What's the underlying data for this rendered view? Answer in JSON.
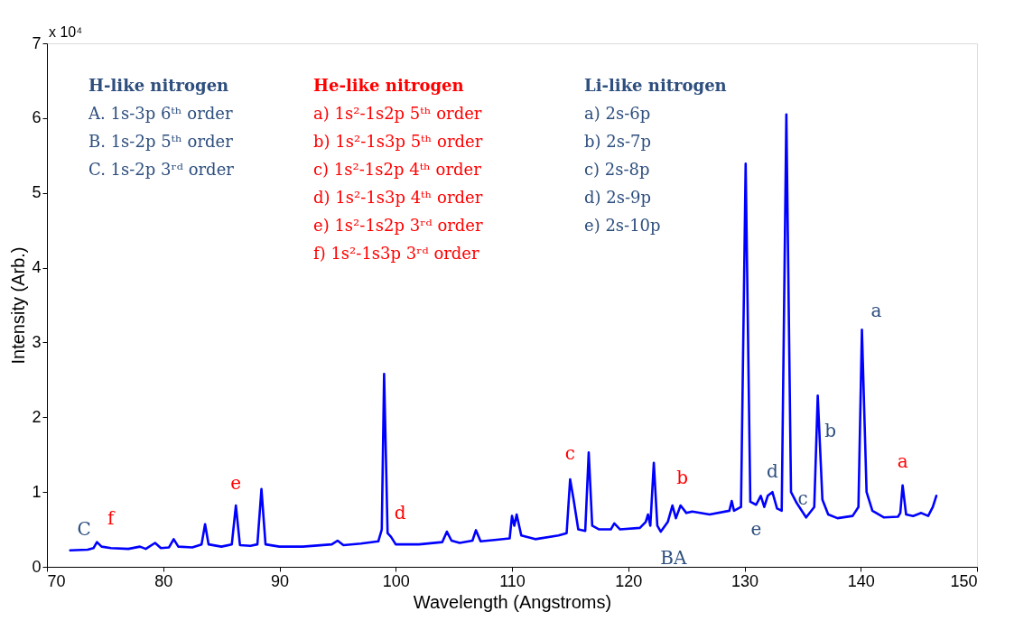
{
  "chart_data": {
    "type": "line",
    "xlabel": "Wavelength (Angstroms)",
    "ylabel": "Intensity (Arb.)",
    "xlim": [
      70,
      150
    ],
    "xticks": [
      70,
      80,
      90,
      100,
      110,
      120,
      130,
      140,
      150
    ],
    "ylim": [
      0,
      7
    ],
    "yticks": [
      0,
      1,
      2,
      3,
      4,
      5,
      6,
      7
    ],
    "grid": false,
    "marker": "none",
    "line_style": "solid",
    "series": [
      {
        "color": "#0000ff",
        "x": [
          72.0,
          73.5,
          74.0,
          74.3,
          74.7,
          75.5,
          77.0,
          78.0,
          78.5,
          79.3,
          79.8,
          80.5,
          80.9,
          81.3,
          82.5,
          83.3,
          83.6,
          83.9,
          85.0,
          85.9,
          86.25,
          86.6,
          87.5,
          88.1,
          88.45,
          88.8,
          90.0,
          92.0,
          94.5,
          95.0,
          95.5,
          97.0,
          98.5,
          98.8,
          99.0,
          99.3,
          99.6,
          100.0,
          102.0,
          104.0,
          104.4,
          104.8,
          105.5,
          106.6,
          106.9,
          107.3,
          108.5,
          109.8,
          110.0,
          110.2,
          110.4,
          110.8,
          112.0,
          114.0,
          114.7,
          115.0,
          115.3,
          115.7,
          116.3,
          116.6,
          116.9,
          117.5,
          118.5,
          118.8,
          119.3,
          121.0,
          121.5,
          121.7,
          121.9,
          122.2,
          122.5,
          122.8,
          123.4,
          123.8,
          124.1,
          124.5,
          125.0,
          125.5,
          127.0,
          128.7,
          128.9,
          129.1,
          129.7,
          130.1,
          130.5,
          131.0,
          131.4,
          131.7,
          132.0,
          132.4,
          132.8,
          133.2,
          133.6,
          134.0,
          134.5,
          135.3,
          136.0,
          136.3,
          136.7,
          137.2,
          138.0,
          139.3,
          139.8,
          140.1,
          140.5,
          141.0,
          142.0,
          143.2,
          143.4,
          143.6,
          143.9,
          144.5,
          145.2,
          145.8,
          146.2,
          146.5
        ],
        "values": [
          0.22,
          0.23,
          0.25,
          0.33,
          0.27,
          0.25,
          0.24,
          0.27,
          0.24,
          0.32,
          0.25,
          0.26,
          0.37,
          0.27,
          0.26,
          0.3,
          0.57,
          0.3,
          0.27,
          0.3,
          0.82,
          0.29,
          0.28,
          0.3,
          1.04,
          0.3,
          0.27,
          0.27,
          0.3,
          0.35,
          0.29,
          0.31,
          0.34,
          0.5,
          2.58,
          0.45,
          0.4,
          0.3,
          0.3,
          0.33,
          0.47,
          0.35,
          0.32,
          0.35,
          0.49,
          0.34,
          0.36,
          0.38,
          0.68,
          0.55,
          0.7,
          0.42,
          0.37,
          0.42,
          0.45,
          1.17,
          0.9,
          0.5,
          0.48,
          1.53,
          0.55,
          0.5,
          0.5,
          0.58,
          0.5,
          0.52,
          0.6,
          0.7,
          0.55,
          1.39,
          0.55,
          0.47,
          0.6,
          0.82,
          0.65,
          0.82,
          0.72,
          0.74,
          0.7,
          0.75,
          0.88,
          0.75,
          0.8,
          5.39,
          0.87,
          0.83,
          0.95,
          0.8,
          0.95,
          1.0,
          0.78,
          0.75,
          6.05,
          1.0,
          0.85,
          0.66,
          0.8,
          2.29,
          0.9,
          0.7,
          0.65,
          0.68,
          0.8,
          3.17,
          1.0,
          0.75,
          0.66,
          0.67,
          0.72,
          1.09,
          0.7,
          0.68,
          0.72,
          0.68,
          0.8,
          0.95
        ]
      }
    ],
    "annotations": [
      "x 10⁴",
      "H-like nitrogen\nA.   1s-3p 6ᵗʰ order\nB.   1s-2p 5ᵗʰ order\nC.   1s-2p 3ʳᵈ order",
      "He-like nitrogen\na)   1s²-1s2p 5ᵗʰ order\nb)   1s²-1s3p 5ᵗʰ order\nc)   1s²-1s2p 4ᵗʰ order\nd)   1s²-1s3p 4ᵗʰ order\ne)   1s²-1s2p 3ʳᵈ order\nf)   1s²-1s3p 3ʳᵈ order",
      "Li-like nitrogen\na)   2s-6p\nb)   2s-7p\nc)   2s-8p\nd)   2s-9p\ne)   2s-10p",
      {
        "text": "C",
        "x": 73.5,
        "y": 0.23
      },
      {
        "text": "f",
        "x": 75.5,
        "y": 0.25
      },
      {
        "text": "e",
        "x": 86.25,
        "y": 0.82
      },
      {
        "text": "d",
        "x": 99.6,
        "y": 0.4
      },
      {
        "text": "c",
        "x": 115.0,
        "y": 1.17
      },
      {
        "text": "b",
        "x": 124.5,
        "y": 0.82
      },
      {
        "text": "BA",
        "x": 122.8,
        "y": 0.47
      },
      {
        "text": "e",
        "x": 131.0,
        "y": 0.83
      },
      {
        "text": "d",
        "x": 132.4,
        "y": 1.0
      },
      {
        "text": "c",
        "x": 134.0,
        "y": 1.0
      },
      {
        "text": "b",
        "x": 136.3,
        "y": 2.29
      },
      {
        "text": "a",
        "x": 140.1,
        "y": 3.17
      },
      {
        "text": "a",
        "x": 143.6,
        "y": 1.09
      }
    ]
  }
}
